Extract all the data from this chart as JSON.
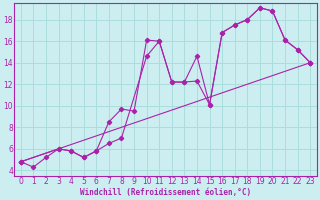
{
  "xlabel": "Windchill (Refroidissement éolien,°C)",
  "background_color": "#cceef0",
  "grid_color": "#aadddd",
  "line_color": "#aa22aa",
  "xlim": [
    -0.5,
    23.5
  ],
  "ylim": [
    3.5,
    19.5
  ],
  "xticks": [
    0,
    1,
    2,
    3,
    4,
    5,
    6,
    7,
    8,
    9,
    10,
    11,
    12,
    13,
    14,
    15,
    16,
    17,
    18,
    19,
    20,
    21,
    22,
    23
  ],
  "yticks": [
    4,
    6,
    8,
    10,
    12,
    14,
    16,
    18
  ],
  "line1_x": [
    0,
    1,
    2,
    3,
    4,
    5,
    6,
    7,
    8,
    10,
    11,
    12,
    13,
    14,
    15,
    16,
    17,
    18,
    19,
    20,
    21,
    22,
    23
  ],
  "line1_y": [
    4.8,
    4.3,
    5.2,
    6.0,
    5.8,
    5.2,
    5.8,
    6.5,
    7.0,
    14.6,
    16.0,
    12.2,
    12.2,
    12.3,
    10.1,
    16.8,
    17.5,
    18.0,
    19.1,
    18.8,
    16.1,
    15.2,
    14.0
  ],
  "line2_x": [
    0,
    3,
    4,
    5,
    6,
    7,
    8,
    9,
    10,
    11,
    12,
    13,
    14,
    15,
    16,
    17,
    18,
    19,
    20,
    21,
    22,
    23
  ],
  "line2_y": [
    4.8,
    6.0,
    5.8,
    5.2,
    5.8,
    8.5,
    9.7,
    9.5,
    16.1,
    16.0,
    12.2,
    12.2,
    14.6,
    10.1,
    16.8,
    17.5,
    18.0,
    19.1,
    18.8,
    16.1,
    15.2,
    14.0
  ],
  "line3_x": [
    0,
    23
  ],
  "line3_y": [
    4.8,
    14.0
  ],
  "xlabel_fontsize": 5.5,
  "tick_fontsize": 5.5
}
